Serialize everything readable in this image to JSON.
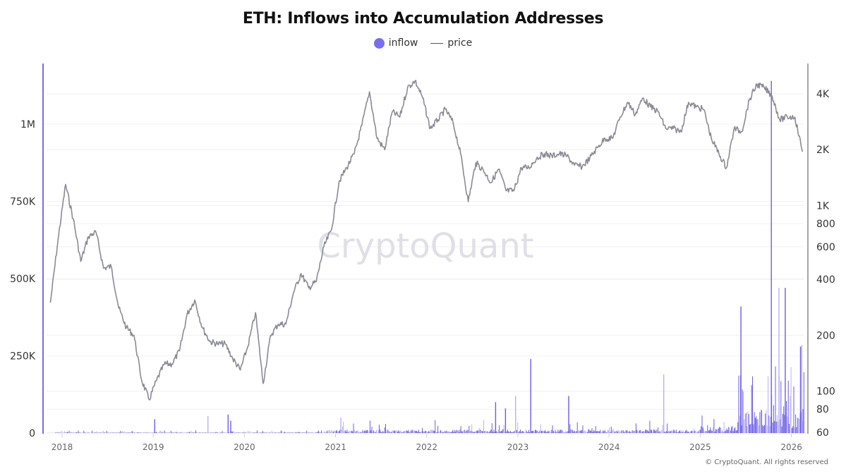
{
  "title": "ETH: Inflows into Accumulation Addresses",
  "legend": {
    "inflow": "inflow",
    "price": "price"
  },
  "watermark": "CryptoQuant",
  "copyright": "© CryptoQuant. All rights reserved",
  "colors": {
    "inflow": "#6c5ce7",
    "inflow_light": "#b8b0f5",
    "price": "#8a8a96",
    "grid": "#eeeeee",
    "left_axis": "#7b6cf0",
    "right_axis": "#888888"
  },
  "chart_data": {
    "type": "bar+line",
    "title": "ETH: Inflows into Accumulation Addresses",
    "legend_position": "top-center",
    "grid": true,
    "x_axis": {
      "ticks": [
        "2018",
        "2019",
        "2020",
        "2021",
        "2022",
        "2023",
        "2024",
        "2025",
        "2026"
      ],
      "range": [
        "2017-11",
        "2026-02"
      ]
    },
    "y_left": {
      "label": "inflow",
      "ticks": [
        "0",
        "250K",
        "500K",
        "750K",
        "1M"
      ],
      "tick_values": [
        0,
        250000,
        500000,
        750000,
        1000000
      ],
      "range": [
        0,
        1200000
      ]
    },
    "y_right": {
      "label": "price",
      "scale": "log",
      "ticks": [
        "60",
        "80",
        "100",
        "200",
        "400",
        "600",
        "800",
        "1K",
        "2K",
        "4K"
      ],
      "tick_values": [
        60,
        80,
        100,
        200,
        400,
        600,
        800,
        1000,
        2000,
        4000
      ]
    },
    "series": [
      {
        "name": "price",
        "type": "line",
        "axis": "right",
        "points": [
          [
            "2017-11",
            300
          ],
          [
            "2017-12",
            650
          ],
          [
            "2018-01",
            1300
          ],
          [
            "2018-02",
            850
          ],
          [
            "2018-03",
            500
          ],
          [
            "2018-04",
            680
          ],
          [
            "2018-05",
            720
          ],
          [
            "2018-06",
            460
          ],
          [
            "2018-07",
            470
          ],
          [
            "2018-08",
            280
          ],
          [
            "2018-09",
            220
          ],
          [
            "2018-10",
            200
          ],
          [
            "2018-11",
            115
          ],
          [
            "2018-12",
            90
          ],
          [
            "2019-01",
            115
          ],
          [
            "2019-02",
            140
          ],
          [
            "2019-03",
            140
          ],
          [
            "2019-04",
            165
          ],
          [
            "2019-05",
            260
          ],
          [
            "2019-06",
            310
          ],
          [
            "2019-07",
            220
          ],
          [
            "2019-08",
            185
          ],
          [
            "2019-09",
            180
          ],
          [
            "2019-10",
            180
          ],
          [
            "2019-11",
            150
          ],
          [
            "2019-12",
            130
          ],
          [
            "2020-01",
            175
          ],
          [
            "2020-02",
            265
          ],
          [
            "2020-03",
            110
          ],
          [
            "2020-04",
            200
          ],
          [
            "2020-05",
            230
          ],
          [
            "2020-06",
            230
          ],
          [
            "2020-07",
            340
          ],
          [
            "2020-08",
            430
          ],
          [
            "2020-09",
            360
          ],
          [
            "2020-10",
            390
          ],
          [
            "2020-11",
            600
          ],
          [
            "2020-12",
            740
          ],
          [
            "2021-01",
            1350
          ],
          [
            "2021-02",
            1600
          ],
          [
            "2021-03",
            1900
          ],
          [
            "2021-04",
            2700
          ],
          [
            "2021-05",
            4100
          ],
          [
            "2021-06",
            2300
          ],
          [
            "2021-07",
            2000
          ],
          [
            "2021-08",
            3200
          ],
          [
            "2021-09",
            3000
          ],
          [
            "2021-10",
            4300
          ],
          [
            "2021-11",
            4700
          ],
          [
            "2021-12",
            3800
          ],
          [
            "2022-01",
            2600
          ],
          [
            "2022-02",
            2900
          ],
          [
            "2022-03",
            3300
          ],
          [
            "2022-04",
            2800
          ],
          [
            "2022-05",
            1900
          ],
          [
            "2022-06",
            1050
          ],
          [
            "2022-07",
            1700
          ],
          [
            "2022-08",
            1550
          ],
          [
            "2022-09",
            1330
          ],
          [
            "2022-10",
            1570
          ],
          [
            "2022-11",
            1200
          ],
          [
            "2022-12",
            1200
          ],
          [
            "2023-01",
            1600
          ],
          [
            "2023-02",
            1600
          ],
          [
            "2023-03",
            1800
          ],
          [
            "2023-04",
            1900
          ],
          [
            "2023-05",
            1850
          ],
          [
            "2023-06",
            1900
          ],
          [
            "2023-07",
            1850
          ],
          [
            "2023-08",
            1650
          ],
          [
            "2023-09",
            1620
          ],
          [
            "2023-10",
            1800
          ],
          [
            "2023-11",
            2050
          ],
          [
            "2023-12",
            2300
          ],
          [
            "2024-01",
            2300
          ],
          [
            "2024-02",
            3000
          ],
          [
            "2024-03",
            3600
          ],
          [
            "2024-04",
            3100
          ],
          [
            "2024-05",
            3800
          ],
          [
            "2024-06",
            3400
          ],
          [
            "2024-07",
            3200
          ],
          [
            "2024-08",
            2600
          ],
          [
            "2024-09",
            2600
          ],
          [
            "2024-10",
            2500
          ],
          [
            "2024-11",
            3600
          ],
          [
            "2024-12",
            3400
          ],
          [
            "2025-01",
            3300
          ],
          [
            "2025-02",
            2300
          ],
          [
            "2025-03",
            1900
          ],
          [
            "2025-04",
            1600
          ],
          [
            "2025-05",
            2600
          ],
          [
            "2025-06",
            2500
          ],
          [
            "2025-07",
            3700
          ],
          [
            "2025-08",
            4500
          ],
          [
            "2025-09",
            4300
          ],
          [
            "2025-10",
            3900
          ],
          [
            "2025-11",
            2900
          ],
          [
            "2025-12",
            3000
          ],
          [
            "2026-01",
            3000
          ],
          [
            "2026-02",
            1950
          ]
        ]
      },
      {
        "name": "inflow",
        "type": "bar",
        "axis": "left",
        "notable_spikes": [
          [
            "2019-01-05",
            45000
          ],
          [
            "2019-08-05",
            55000
          ],
          [
            "2019-10-25",
            60000
          ],
          [
            "2019-11-05",
            40000
          ],
          [
            "2021-01-20",
            50000
          ],
          [
            "2022-10-01",
            100000
          ],
          [
            "2022-11-10",
            80000
          ],
          [
            "2022-12-20",
            120000
          ],
          [
            "2023-02-20",
            240000
          ],
          [
            "2023-07-20",
            120000
          ],
          [
            "2024-08-05",
            190000
          ],
          [
            "2025-06-10",
            410000
          ],
          [
            "2025-10-10",
            1140000
          ],
          [
            "2025-11-10",
            470000
          ],
          [
            "2025-12-05",
            470000
          ],
          [
            "2026-02-05",
            280000
          ],
          [
            "2026-02-10",
            285000
          ]
        ]
      }
    ]
  }
}
